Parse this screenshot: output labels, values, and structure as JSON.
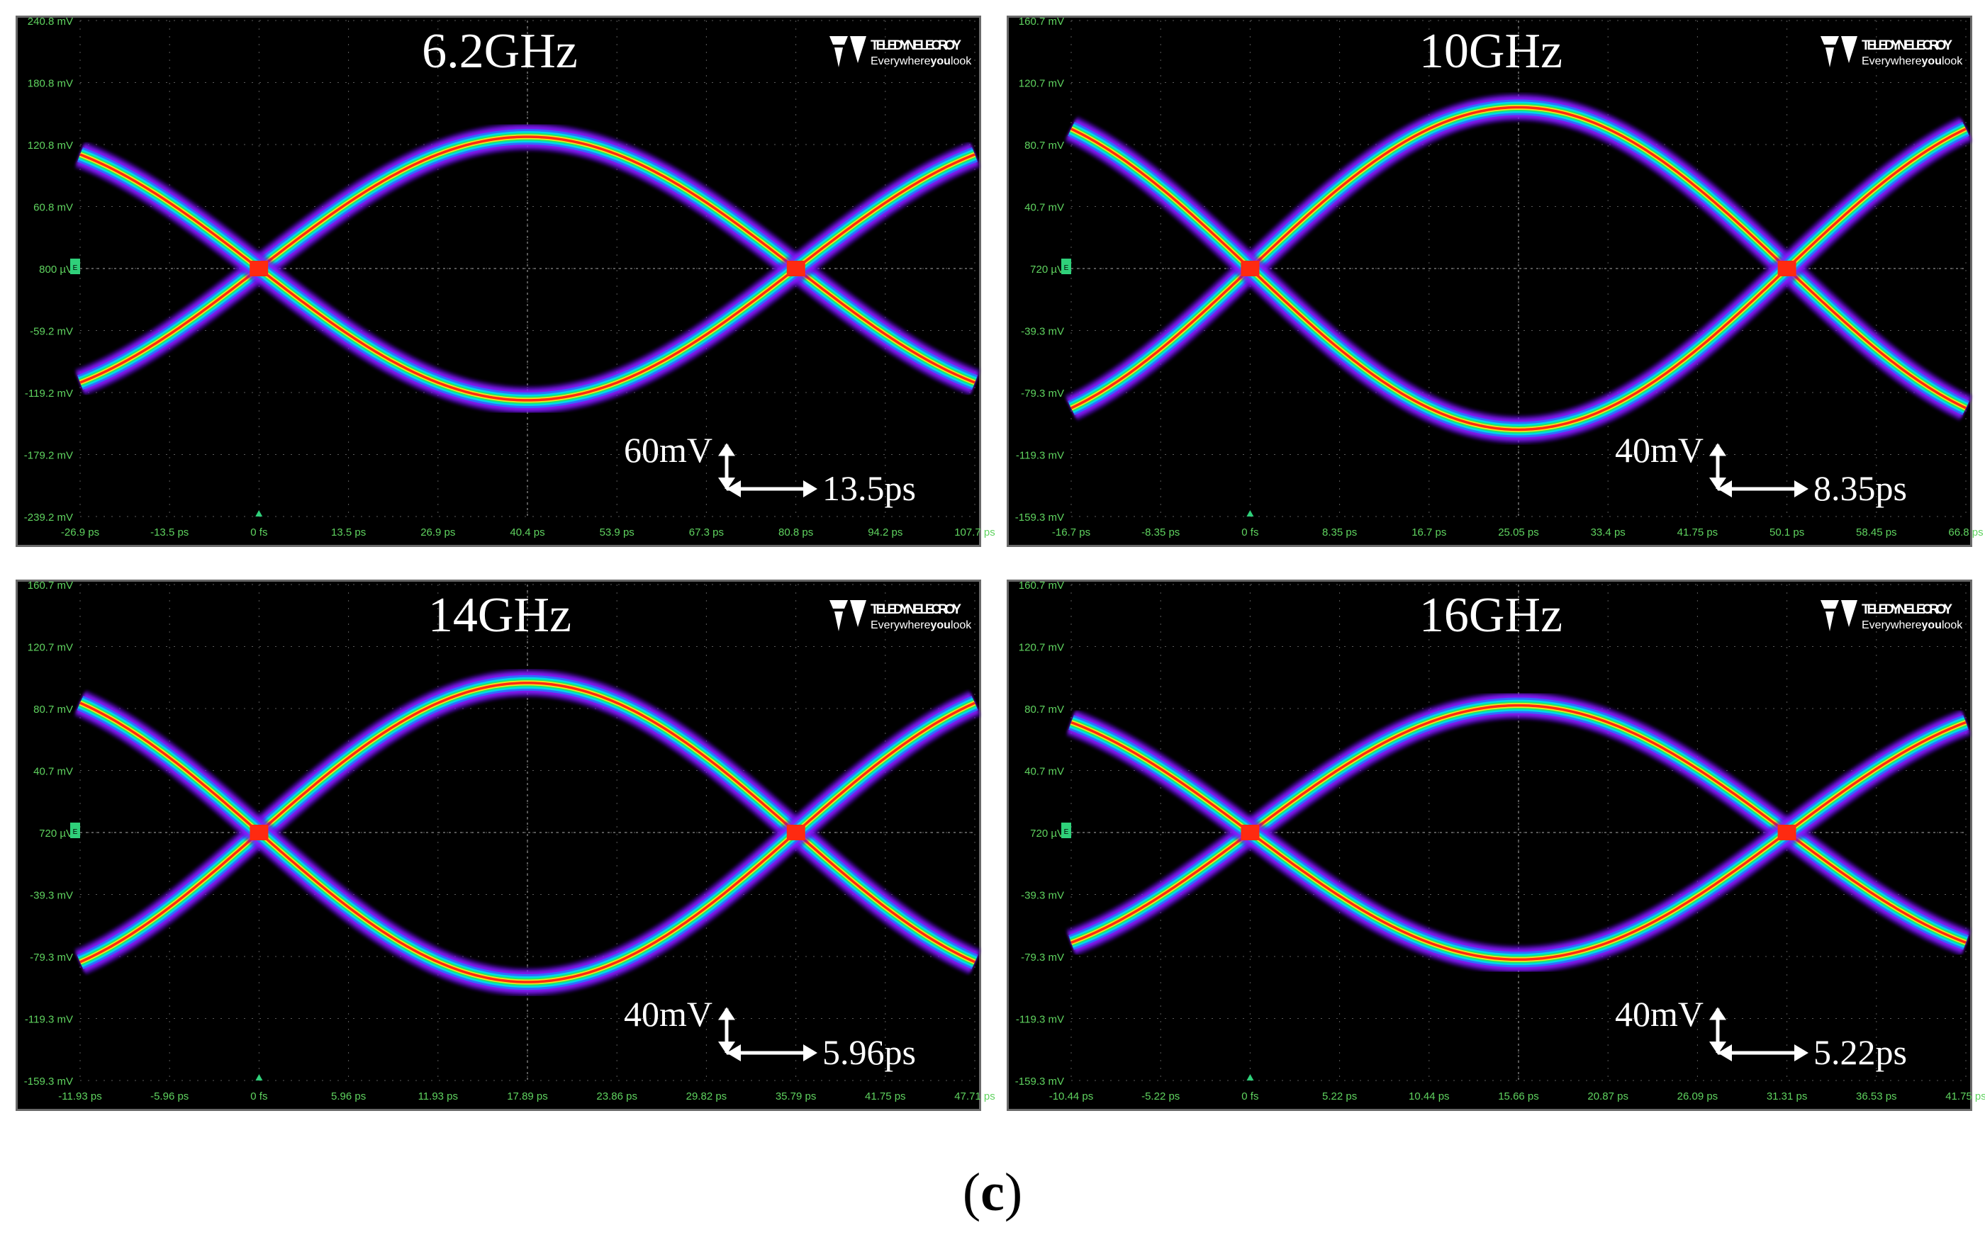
{
  "figure_label": {
    "open": "(",
    "letter": "c",
    "close": ")"
  },
  "brand": {
    "name": "TELEDYNE LECROY",
    "tagline_pre": "Everywhere",
    "tagline_bold": "you",
    "tagline_post": "look"
  },
  "colors": {
    "background": "#000000",
    "grid": "#5a5a5a",
    "axis_text": "#5fd35f",
    "title_text": "#ffffff"
  },
  "chart_data": [
    {
      "type": "line",
      "title": "6.2GHz",
      "y_ticks": [
        "240.8 mV",
        "180.8 mV",
        "120.8 mV",
        "60.8 mV",
        "800 µV",
        "-59.2 mV",
        "-119.2 mV",
        "-179.2 mV",
        "-239.2 mV"
      ],
      "x_ticks": [
        "-26.9 ps",
        "-13.5 ps",
        "0 fs",
        "13.5 ps",
        "26.9 ps",
        "40.4 ps",
        "53.9 ps",
        "67.3 ps",
        "80.8 ps",
        "94.2 ps",
        "107.7 ps"
      ],
      "ylim": [
        -239.2,
        240.8
      ],
      "xlim": [
        -26.9,
        107.7
      ],
      "eye": {
        "crossings_ps": [
          0,
          80.8
        ],
        "level_high_mv": 128,
        "level_low_mv": -127,
        "crossing_mv": 0.8
      },
      "scale_bar": {
        "voltage": "60mV",
        "time": "13.5ps"
      }
    },
    {
      "type": "line",
      "title": "10GHz",
      "y_ticks": [
        "160.7 mV",
        "120.7 mV",
        "80.7 mV",
        "40.7 mV",
        "720 µV",
        "-39.3 mV",
        "-79.3 mV",
        "-119.3 mV",
        "-159.3 mV"
      ],
      "x_ticks": [
        "-16.7 ps",
        "-8.35 ps",
        "0 fs",
        "8.35 ps",
        "16.7 ps",
        "25.05 ps",
        "33.4 ps",
        "41.75 ps",
        "50.1 ps",
        "58.45 ps",
        "66.8 ps"
      ],
      "ylim": [
        -159.3,
        160.7
      ],
      "xlim": [
        -16.7,
        66.8
      ],
      "eye": {
        "crossings_ps": [
          0,
          50.1
        ],
        "level_high_mv": 104,
        "level_low_mv": -104,
        "crossing_mv": 0.72
      },
      "scale_bar": {
        "voltage": "40mV",
        "time": "8.35ps"
      }
    },
    {
      "type": "line",
      "title": "14GHz",
      "y_ticks": [
        "160.7 mV",
        "120.7 mV",
        "80.7 mV",
        "40.7 mV",
        "720 µV",
        "-39.3 mV",
        "-79.3 mV",
        "-119.3 mV",
        "-159.3 mV"
      ],
      "x_ticks": [
        "-11.93 ps",
        "-5.96 ps",
        "0 fs",
        "5.96 ps",
        "11.93 ps",
        "17.89 ps",
        "23.86 ps",
        "29.82 ps",
        "35.79 ps",
        "41.75 ps",
        "47.71 ps"
      ],
      "ylim": [
        -159.3,
        160.7
      ],
      "xlim": [
        -11.93,
        47.71
      ],
      "eye": {
        "crossings_ps": [
          0,
          35.79
        ],
        "level_high_mv": 98,
        "level_low_mv": -95,
        "crossing_mv": 0.72
      },
      "scale_bar": {
        "voltage": "40mV",
        "time": "5.96ps"
      }
    },
    {
      "type": "line",
      "title": "16GHz",
      "y_ticks": [
        "160.7 mV",
        "120.7 mV",
        "80.7 mV",
        "40.7 mV",
        "720 µV",
        "-39.3 mV",
        "-79.3 mV",
        "-119.3 mV",
        "-159.3 mV"
      ],
      "x_ticks": [
        "-10.44 ps",
        "-5.22 ps",
        "0 fs",
        "5.22 ps",
        "10.44 ps",
        "15.66 ps",
        "20.87 ps",
        "26.09 ps",
        "31.31 ps",
        "36.53 ps",
        "41.75 ps"
      ],
      "ylim": [
        -159.3,
        160.7
      ],
      "xlim": [
        -10.44,
        41.75
      ],
      "eye": {
        "crossings_ps": [
          0,
          31.31
        ],
        "level_high_mv": 82,
        "level_low_mv": -82,
        "crossing_mv": 0.72
      },
      "scale_bar": {
        "voltage": "40mV",
        "time": "5.22ps"
      }
    }
  ]
}
